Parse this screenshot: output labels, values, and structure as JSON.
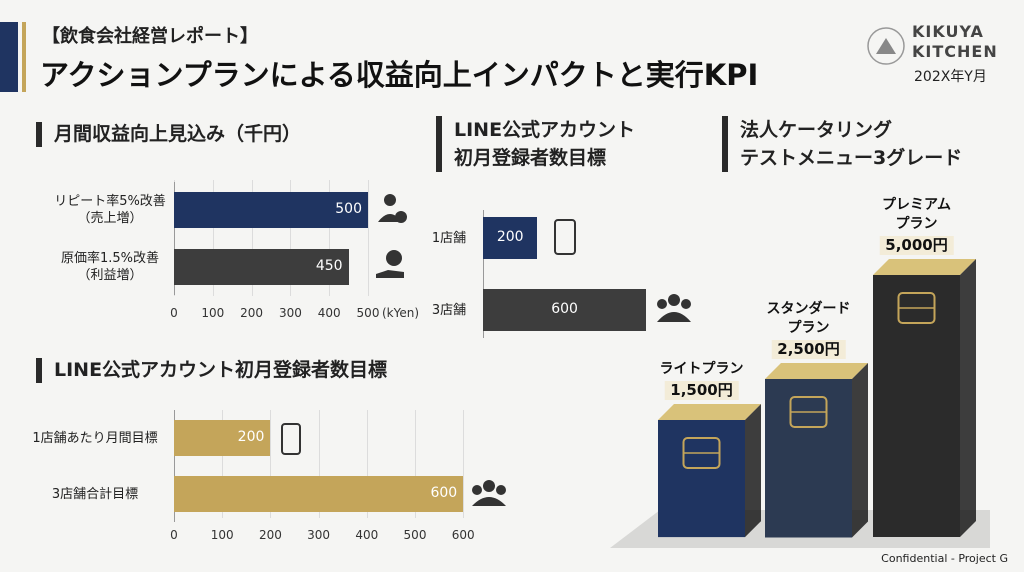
{
  "header": {
    "tag": "【飲食会社経営レポート】",
    "title": "アクションプランによる収益向上インパクトと実行KPI"
  },
  "logo": {
    "line1": "KIKUYA",
    "line2": "KITCHEN",
    "date": "202X年Y月"
  },
  "footer": "Confidential - Project G",
  "chart_data": [
    {
      "type": "hbar",
      "title": "月間収益向上見込み（千円）",
      "categories": [
        "リピート率5%改善\n（売上増）",
        "原価率1.5%改善\n（利益増）"
      ],
      "values": [
        500,
        450
      ],
      "colors": [
        "#1f3461",
        "#3d3d3d"
      ],
      "xlim": [
        0,
        500
      ],
      "xticks": [
        0,
        100,
        200,
        300,
        400,
        500
      ],
      "xlabel": "(kYen)",
      "grid": true
    },
    {
      "type": "hbar",
      "title": "LINE公式アカウント\n初月登録者数目標",
      "categories": [
        "1店舗",
        "3店舗"
      ],
      "values": [
        200,
        600
      ],
      "colors": [
        "#1f3461",
        "#3d3d3d"
      ]
    },
    {
      "type": "hbar",
      "title": "LINE公式アカウント初月登録者数目標",
      "categories": [
        "1店舗あたり月間目標",
        "3店舗合計目標"
      ],
      "values": [
        200,
        600
      ],
      "color": "#c4a55a",
      "xlim": [
        0,
        600
      ],
      "xticks": [
        0,
        100,
        200,
        300,
        400,
        500,
        600
      ],
      "grid": true
    },
    {
      "type": "bar3d",
      "title": "法人ケータリング\nテストメニュー3グレード",
      "categories": [
        "ライトプラン",
        "スタンダード\nプラン",
        "プレミアム\nプラン"
      ],
      "values": [
        1500,
        2500,
        5000
      ],
      "value_labels": [
        "1,500円",
        "2,500円",
        "5,000円"
      ],
      "colors": [
        "#1f3461",
        "#2c3a52",
        "#2b2b2b"
      ]
    }
  ]
}
